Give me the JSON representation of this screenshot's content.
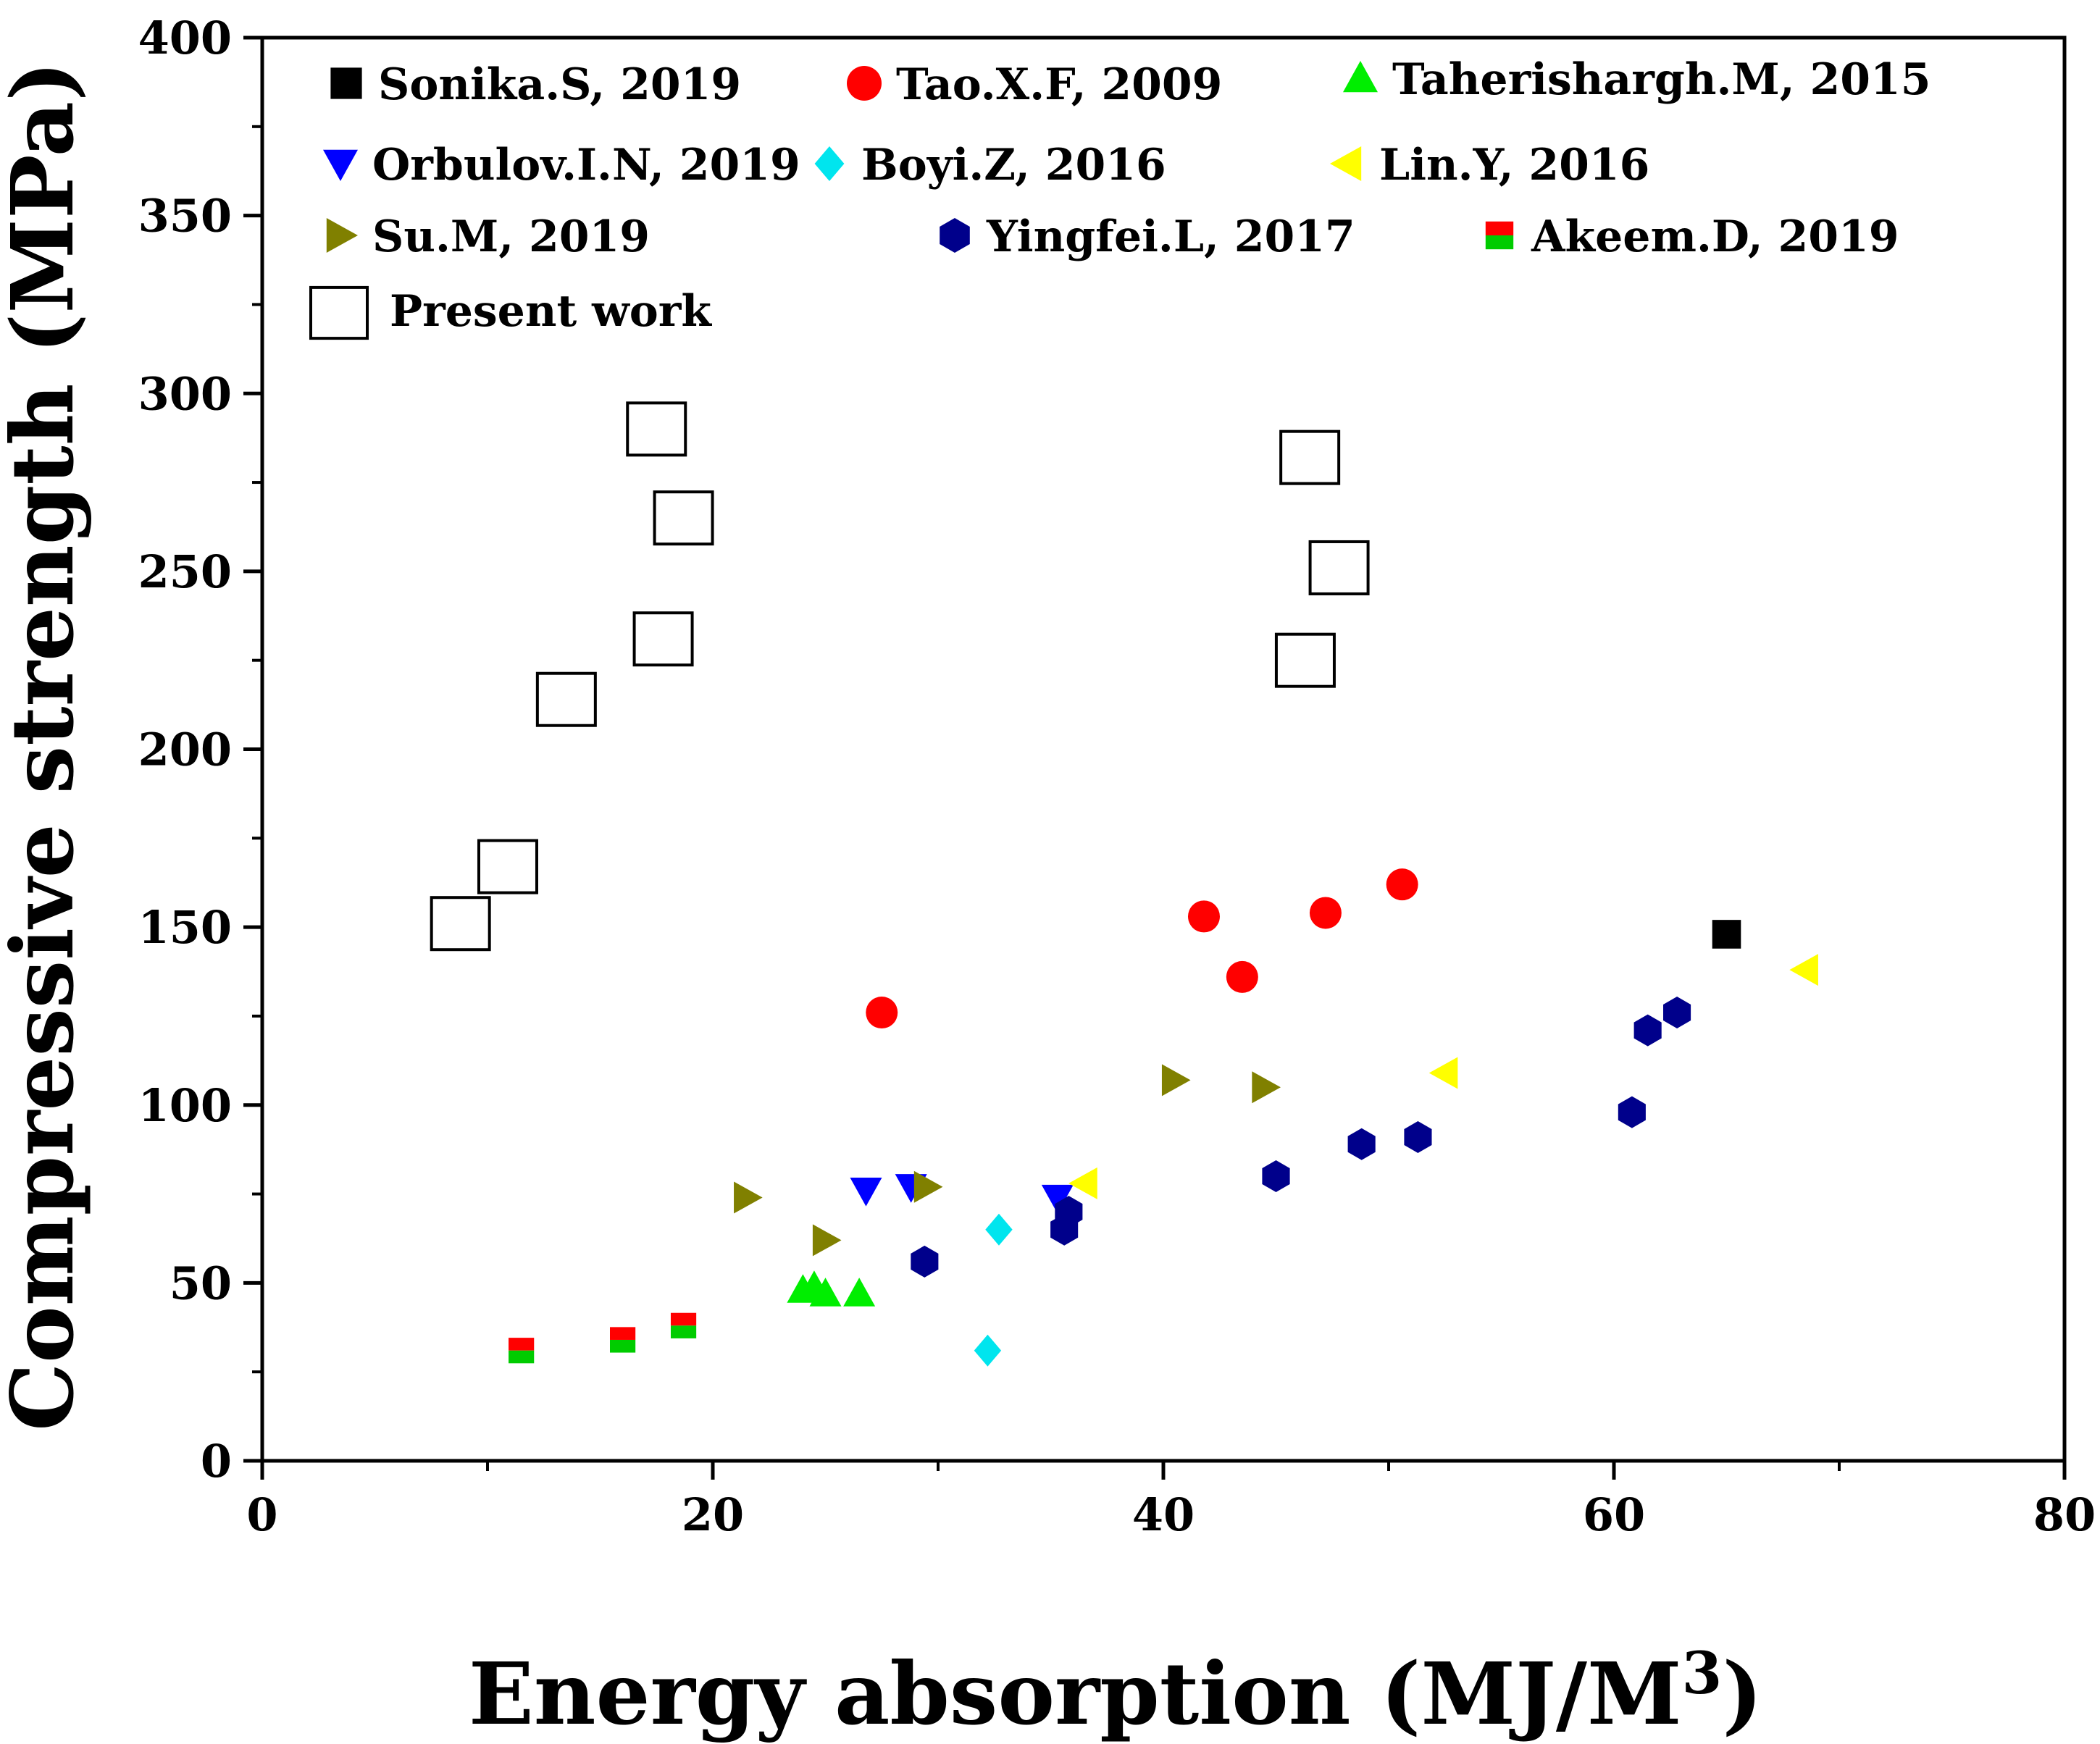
{
  "chart_data": {
    "type": "scatter",
    "title": "",
    "xlabel": "Energy absorption (MJ/M",
    "xlabel_superscript": "3",
    "xlabel_close": ")",
    "ylabel": "Compressive strength (MPa)",
    "xlim": [
      0,
      80
    ],
    "ylim": [
      0,
      400
    ],
    "xticks": [
      "0",
      "20",
      "40",
      "60",
      "80"
    ],
    "yticks": [
      "0",
      "50",
      "100",
      "150",
      "200",
      "250",
      "300",
      "350",
      "400"
    ],
    "legend_position": "top",
    "series": [
      {
        "name": "Sonika.S, 2019",
        "marker": "square-filled",
        "color": "#000000",
        "points": [
          [
            65.0,
            148
          ]
        ]
      },
      {
        "name": "Tao.X.F, 2009",
        "marker": "circle",
        "color": "#ff0000",
        "points": [
          [
            27.5,
            126
          ],
          [
            41.8,
            153
          ],
          [
            43.5,
            136
          ],
          [
            47.2,
            154
          ],
          [
            50.6,
            162
          ]
        ]
      },
      {
        "name": "Taherishargh.M, 2015",
        "marker": "triangle-up",
        "color": "#00ee00",
        "points": [
          [
            24.0,
            48
          ],
          [
            24.5,
            49
          ],
          [
            25.0,
            47
          ],
          [
            26.5,
            47
          ]
        ]
      },
      {
        "name": "Orbulov.I.N, 2019",
        "marker": "triangle-down",
        "color": "#0000ff",
        "points": [
          [
            26.8,
            76
          ],
          [
            28.8,
            77
          ],
          [
            35.3,
            74
          ]
        ]
      },
      {
        "name": "Boyi.Z, 2016",
        "marker": "diamond",
        "color": "#00e5ee",
        "points": [
          [
            32.2,
            31
          ],
          [
            32.7,
            65
          ]
        ]
      },
      {
        "name": "Lin.Y, 2016",
        "marker": "triangle-left",
        "color": "#ffff00",
        "points": [
          [
            36.5,
            78
          ],
          [
            52.5,
            109
          ],
          [
            68.5,
            138
          ]
        ]
      },
      {
        "name": "Su.M, 2019",
        "marker": "triangle-right",
        "color": "#808000",
        "points": [
          [
            21.5,
            74
          ],
          [
            25.0,
            62
          ],
          [
            29.5,
            77
          ],
          [
            40.5,
            107
          ],
          [
            44.5,
            105
          ]
        ]
      },
      {
        "name": "Yingfei.L, 2017",
        "marker": "hexagon",
        "color": "#00008b",
        "points": [
          [
            29.4,
            56
          ],
          [
            35.6,
            65
          ],
          [
            35.8,
            70
          ],
          [
            45.0,
            80
          ],
          [
            48.8,
            89
          ],
          [
            51.3,
            91
          ],
          [
            60.8,
            98
          ],
          [
            61.5,
            121
          ],
          [
            62.8,
            126
          ]
        ]
      },
      {
        "name": "Akeem.D, 2019",
        "marker": "split-square",
        "color": "#ff0000",
        "color2": "#00cc00",
        "points": [
          [
            11.5,
            31
          ],
          [
            16.0,
            34
          ],
          [
            18.7,
            38
          ]
        ]
      },
      {
        "name": "Present work",
        "marker": "square-open",
        "color": "#000000",
        "points": [
          [
            8.8,
            151
          ],
          [
            10.9,
            167
          ],
          [
            13.5,
            214
          ],
          [
            17.5,
            290
          ],
          [
            18.7,
            265
          ],
          [
            17.8,
            231
          ],
          [
            46.5,
            282
          ],
          [
            47.8,
            251
          ],
          [
            46.3,
            225
          ]
        ]
      }
    ]
  }
}
